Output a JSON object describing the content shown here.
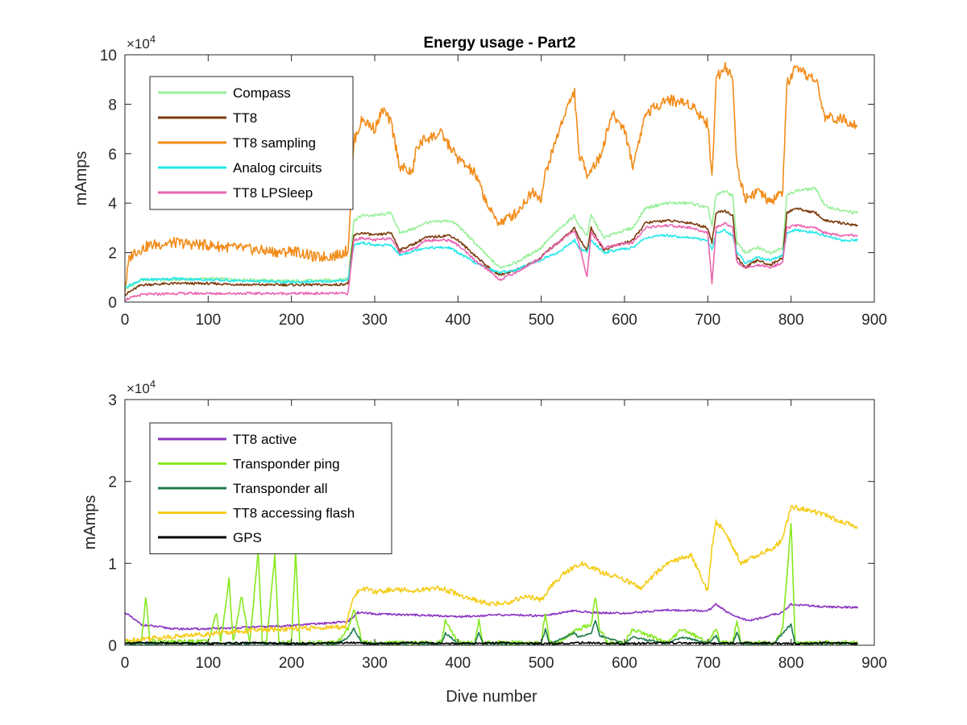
{
  "chart_data": [
    {
      "type": "line",
      "title": "Energy usage - Part2",
      "xlabel": "",
      "ylabel": "mAmps",
      "xlim": [
        0,
        900
      ],
      "ylim": [
        0,
        100000
      ],
      "xticks": [
        0,
        100,
        200,
        300,
        400,
        500,
        600,
        700,
        800,
        900
      ],
      "xtick_labels": [
        "0",
        "100",
        "200",
        "300",
        "400",
        "500",
        "600",
        "700",
        "800",
        "900"
      ],
      "yticks": [
        0,
        20000,
        40000,
        60000,
        80000,
        100000
      ],
      "ytick_labels": [
        "0",
        "2",
        "4",
        "6",
        "8",
        "10"
      ],
      "y_exponent_label": "×10",
      "y_exponent_power": "4",
      "legend_position": "top-left",
      "series": [
        {
          "name": "Compass",
          "color": "#98f09a",
          "x": [
            0,
            20,
            60,
            100,
            150,
            200,
            255,
            268,
            275,
            285,
            300,
            320,
            330,
            350,
            360,
            390,
            400,
            420,
            440,
            450,
            470,
            490,
            500,
            505,
            520,
            540,
            545,
            555,
            560,
            575,
            590,
            610,
            625,
            650,
            680,
            700,
            705,
            710,
            720,
            730,
            735,
            745,
            760,
            775,
            790,
            795,
            805,
            830,
            840,
            860,
            880
          ],
          "y": [
            5000,
            9000,
            9000,
            9500,
            9000,
            8500,
            9000,
            9500,
            33000,
            35000,
            35000,
            36000,
            28000,
            30000,
            32000,
            33000,
            31000,
            24000,
            17000,
            14000,
            16000,
            20000,
            22000,
            24000,
            29000,
            35000,
            31000,
            27000,
            35000,
            26000,
            28000,
            30000,
            38000,
            40000,
            40000,
            38000,
            31000,
            43000,
            45000,
            43000,
            24000,
            20000,
            22000,
            20000,
            22000,
            43000,
            45000,
            46000,
            39000,
            37000,
            36000
          ]
        },
        {
          "name": "TT8",
          "color": "#7a3a0b",
          "x": [
            0,
            20,
            60,
            100,
            150,
            200,
            255,
            268,
            275,
            285,
            300,
            320,
            330,
            350,
            360,
            390,
            400,
            420,
            440,
            450,
            470,
            490,
            500,
            505,
            520,
            540,
            545,
            555,
            560,
            575,
            590,
            610,
            625,
            650,
            680,
            700,
            705,
            710,
            720,
            730,
            735,
            745,
            760,
            775,
            790,
            795,
            805,
            830,
            840,
            860,
            880
          ],
          "y": [
            3000,
            7000,
            7500,
            7500,
            7000,
            7000,
            7000,
            7500,
            27000,
            28000,
            27000,
            28000,
            21000,
            24000,
            26000,
            27000,
            25000,
            19000,
            13000,
            11000,
            13000,
            16000,
            18000,
            20000,
            24000,
            30000,
            26000,
            21000,
            30000,
            21000,
            23000,
            25000,
            32000,
            33000,
            32000,
            30000,
            24000,
            36000,
            37000,
            35000,
            18000,
            14000,
            17000,
            15000,
            18000,
            36000,
            38000,
            36000,
            33000,
            32000,
            31000
          ]
        },
        {
          "name": "TT8 sampling",
          "color": "#f28c1a",
          "x": [
            0,
            5,
            10,
            30,
            60,
            100,
            130,
            160,
            190,
            200,
            230,
            255,
            268,
            275,
            285,
            300,
            310,
            320,
            330,
            345,
            350,
            360,
            380,
            400,
            420,
            440,
            450,
            470,
            490,
            500,
            505,
            520,
            530,
            540,
            545,
            555,
            570,
            585,
            600,
            610,
            625,
            650,
            680,
            700,
            705,
            710,
            720,
            730,
            735,
            745,
            760,
            775,
            790,
            795,
            805,
            830,
            840,
            860,
            880
          ],
          "y": [
            5000,
            17000,
            20000,
            23000,
            24000,
            23000,
            22000,
            21000,
            20000,
            21000,
            18000,
            19000,
            21000,
            65000,
            74000,
            70000,
            78000,
            72000,
            55000,
            52000,
            62000,
            66000,
            68000,
            58000,
            52000,
            36000,
            32000,
            36000,
            45000,
            42000,
            52000,
            68000,
            78000,
            85000,
            60000,
            52000,
            58000,
            76000,
            70000,
            55000,
            76000,
            82000,
            80000,
            72000,
            50000,
            90000,
            96000,
            90000,
            55000,
            42000,
            45000,
            40000,
            45000,
            88000,
            94000,
            90000,
            75000,
            74000,
            72000
          ]
        },
        {
          "name": "Analog circuits",
          "color": "#24e8ea",
          "x": [
            0,
            20,
            60,
            100,
            150,
            200,
            255,
            268,
            275,
            285,
            300,
            320,
            330,
            350,
            360,
            390,
            400,
            420,
            440,
            450,
            470,
            490,
            500,
            505,
            520,
            540,
            545,
            555,
            560,
            575,
            590,
            610,
            625,
            650,
            680,
            700,
            705,
            710,
            720,
            730,
            735,
            745,
            760,
            775,
            790,
            795,
            805,
            830,
            840,
            860,
            880
          ],
          "y": [
            6000,
            9000,
            9500,
            9000,
            8500,
            8000,
            8500,
            9000,
            23000,
            24000,
            23000,
            23000,
            19000,
            21000,
            22000,
            22000,
            20000,
            16000,
            13000,
            12000,
            13000,
            16000,
            17000,
            18000,
            20000,
            25000,
            22000,
            20000,
            25000,
            20000,
            21000,
            22000,
            26000,
            27000,
            26000,
            25000,
            21000,
            28000,
            29000,
            27000,
            20000,
            16000,
            18000,
            17000,
            19000,
            28000,
            29000,
            28000,
            27000,
            25000,
            25000
          ]
        },
        {
          "name": "TT8 LPSleep",
          "color": "#ea65b0",
          "x": [
            0,
            20,
            60,
            100,
            150,
            200,
            255,
            268,
            275,
            285,
            300,
            320,
            330,
            350,
            360,
            390,
            400,
            420,
            440,
            450,
            470,
            490,
            500,
            505,
            520,
            540,
            545,
            555,
            560,
            575,
            590,
            610,
            625,
            650,
            680,
            700,
            705,
            710,
            720,
            730,
            735,
            745,
            760,
            775,
            790,
            795,
            805,
            830,
            840,
            860,
            880
          ],
          "y": [
            1000,
            3000,
            3500,
            3500,
            3500,
            3500,
            3500,
            3500,
            25000,
            26000,
            25000,
            26000,
            20000,
            22000,
            25000,
            25000,
            23000,
            17000,
            12000,
            9000,
            12000,
            16000,
            18000,
            20000,
            24000,
            29000,
            24000,
            10000,
            28000,
            22000,
            23000,
            24000,
            30000,
            31000,
            30000,
            28000,
            7000,
            30000,
            32000,
            30000,
            16000,
            14000,
            15000,
            14000,
            16000,
            30000,
            31000,
            30000,
            28000,
            27000,
            27000
          ]
        }
      ]
    },
    {
      "type": "line",
      "title": "",
      "xlabel": "Dive number",
      "ylabel": "mAmps",
      "xlim": [
        0,
        900
      ],
      "ylim": [
        0,
        30000
      ],
      "xticks": [
        0,
        100,
        200,
        300,
        400,
        500,
        600,
        700,
        800,
        900
      ],
      "xtick_labels": [
        "0",
        "100",
        "200",
        "300",
        "400",
        "500",
        "600",
        "700",
        "800",
        "900"
      ],
      "yticks": [
        0,
        10000,
        20000,
        30000
      ],
      "ytick_labels": [
        "0",
        "1",
        "2",
        "3"
      ],
      "y_exponent_label": "×10",
      "y_exponent_power": "4",
      "legend_position": "top-left",
      "series": [
        {
          "name": "TT8 active",
          "color": "#8a35c0",
          "x": [
            0,
            20,
            60,
            100,
            150,
            200,
            255,
            268,
            280,
            300,
            350,
            400,
            450,
            470,
            500,
            540,
            560,
            600,
            650,
            700,
            710,
            730,
            750,
            790,
            800,
            840,
            880
          ],
          "y": [
            4000,
            2500,
            2000,
            2000,
            2200,
            2400,
            2800,
            2900,
            4000,
            3800,
            3700,
            3500,
            3700,
            3700,
            3600,
            4200,
            4000,
            3900,
            4300,
            4200,
            5000,
            3600,
            3000,
            4000,
            5000,
            4700,
            4600
          ]
        },
        {
          "name": "Transponder ping",
          "color": "#86e81f",
          "x": [
            0,
            20,
            25,
            30,
            60,
            100,
            110,
            115,
            125,
            130,
            140,
            150,
            160,
            165,
            170,
            180,
            185,
            190,
            200,
            205,
            210,
            255,
            268,
            275,
            285,
            300,
            350,
            380,
            385,
            400,
            420,
            425,
            430,
            460,
            500,
            505,
            510,
            520,
            545,
            560,
            565,
            570,
            580,
            600,
            610,
            650,
            670,
            700,
            710,
            715,
            720,
            730,
            735,
            740,
            780,
            790,
            800,
            805,
            810,
            830,
            880
          ],
          "y": [
            300,
            500,
            6000,
            500,
            400,
            500,
            4000,
            300,
            8000,
            400,
            6000,
            300,
            11500,
            400,
            300,
            11000,
            400,
            300,
            300,
            11500,
            300,
            300,
            2000,
            4500,
            400,
            300,
            300,
            400,
            3000,
            300,
            300,
            3000,
            300,
            300,
            300,
            4000,
            300,
            300,
            2000,
            2500,
            6000,
            2000,
            300,
            300,
            2000,
            300,
            2000,
            300,
            2000,
            300,
            300,
            300,
            3000,
            300,
            300,
            2000,
            15000,
            300,
            300,
            300,
            300
          ]
        },
        {
          "name": "Transponder all",
          "color": "#1f7b4d",
          "x": [
            0,
            255,
            268,
            275,
            285,
            300,
            380,
            385,
            400,
            420,
            425,
            430,
            500,
            505,
            510,
            540,
            545,
            560,
            565,
            570,
            600,
            610,
            650,
            670,
            700,
            710,
            715,
            730,
            735,
            740,
            780,
            790,
            800,
            805,
            810,
            880
          ],
          "y": [
            200,
            200,
            1000,
            2000,
            200,
            200,
            200,
            1500,
            200,
            200,
            1500,
            200,
            200,
            2000,
            200,
            1500,
            1000,
            1500,
            3000,
            1200,
            200,
            1000,
            200,
            1000,
            200,
            1200,
            200,
            200,
            1500,
            200,
            200,
            1500,
            2500,
            200,
            200,
            200
          ]
        },
        {
          "name": "TT8 accessing flash",
          "color": "#f5cc18",
          "x": [
            0,
            20,
            50,
            100,
            150,
            200,
            255,
            265,
            275,
            285,
            300,
            320,
            350,
            380,
            400,
            420,
            440,
            460,
            480,
            500,
            510,
            530,
            550,
            570,
            600,
            620,
            650,
            680,
            700,
            705,
            710,
            720,
            730,
            740,
            760,
            780,
            790,
            800,
            820,
            840,
            860,
            880
          ],
          "y": [
            500,
            800,
            1000,
            1400,
            1800,
            2000,
            2200,
            2300,
            6000,
            7000,
            6500,
            6800,
            6700,
            7000,
            6200,
            5500,
            5000,
            5200,
            6000,
            5500,
            7000,
            9000,
            10000,
            9000,
            8000,
            7000,
            10000,
            11000,
            6500,
            12000,
            15000,
            14000,
            12000,
            10000,
            11000,
            12000,
            13000,
            17000,
            16500,
            16000,
            15000,
            14500
          ]
        },
        {
          "name": "GPS",
          "color": "#000000",
          "x": [
            0,
            50,
            100,
            150,
            200,
            255,
            275,
            300,
            350,
            400,
            450,
            500,
            550,
            600,
            650,
            700,
            750,
            800,
            850,
            880
          ],
          "y": [
            300,
            300,
            200,
            300,
            200,
            300,
            300,
            200,
            300,
            200,
            300,
            200,
            300,
            200,
            300,
            200,
            300,
            200,
            300,
            200
          ]
        }
      ]
    }
  ]
}
